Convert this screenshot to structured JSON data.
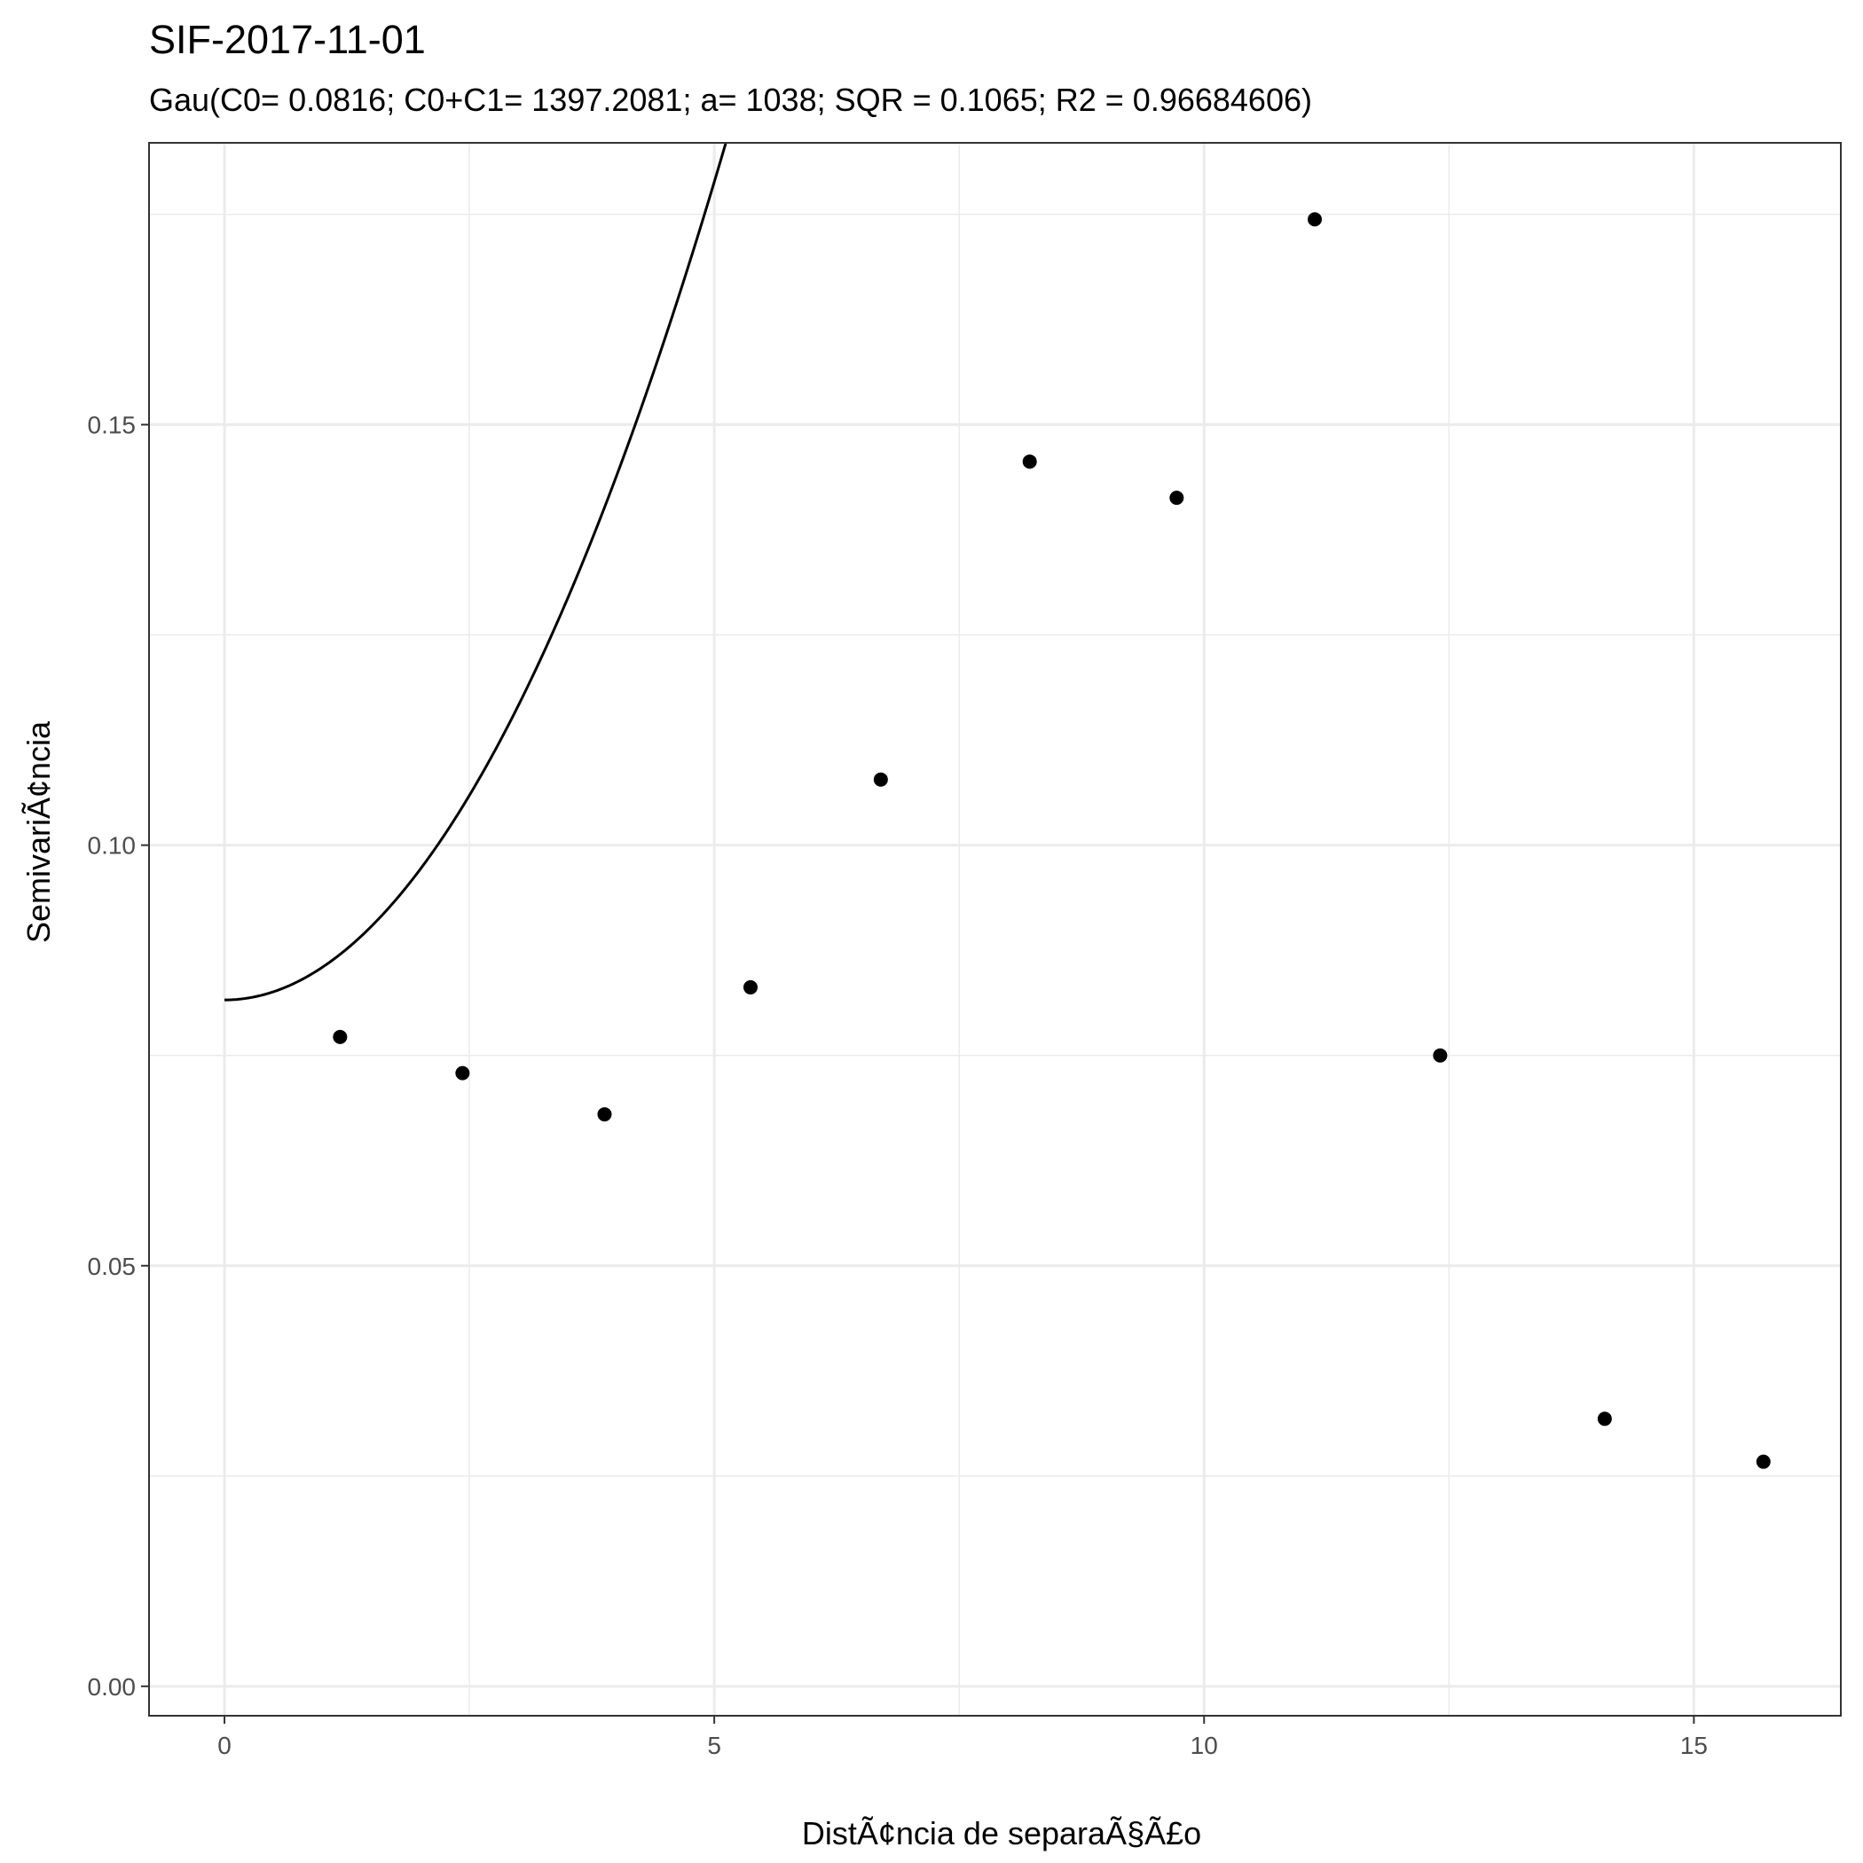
{
  "chart_data": {
    "type": "scatter",
    "title": "SIF-2017-11-01",
    "subtitle": "Gau(C0= 0.0816; C0+C1= 1397.2081; a= 1038; SQR = 0.1065; R2 = 0.96684606)",
    "xlabel": "DistÃ¢ncia de separaÃ§Ã£o",
    "ylabel": "SemivariÃ¢ncia",
    "xlim": [
      -0.77,
      16.5
    ],
    "ylim": [
      -0.0035,
      0.1835
    ],
    "xticks": [
      0,
      5,
      10,
      15
    ],
    "xtick_labels": [
      "0",
      "5",
      "10",
      "15"
    ],
    "yticks": [
      0.0,
      0.05,
      0.1,
      0.15
    ],
    "ytick_labels": [
      "0.00",
      "0.05",
      "0.10",
      "0.15"
    ],
    "grid": true,
    "points": [
      {
        "x": 1.18,
        "y": 0.0772
      },
      {
        "x": 2.43,
        "y": 0.0729
      },
      {
        "x": 3.88,
        "y": 0.068
      },
      {
        "x": 5.37,
        "y": 0.0831
      },
      {
        "x": 6.7,
        "y": 0.1078
      },
      {
        "x": 8.22,
        "y": 0.1456
      },
      {
        "x": 9.72,
        "y": 0.1413
      },
      {
        "x": 11.13,
        "y": 0.1744
      },
      {
        "x": 12.41,
        "y": 0.075
      },
      {
        "x": 14.09,
        "y": 0.0318
      },
      {
        "x": 15.71,
        "y": 0.0267
      }
    ],
    "model": {
      "type": "gaussian",
      "c0": 0.0816,
      "sill": 1397.2081,
      "a": 1038
    }
  }
}
